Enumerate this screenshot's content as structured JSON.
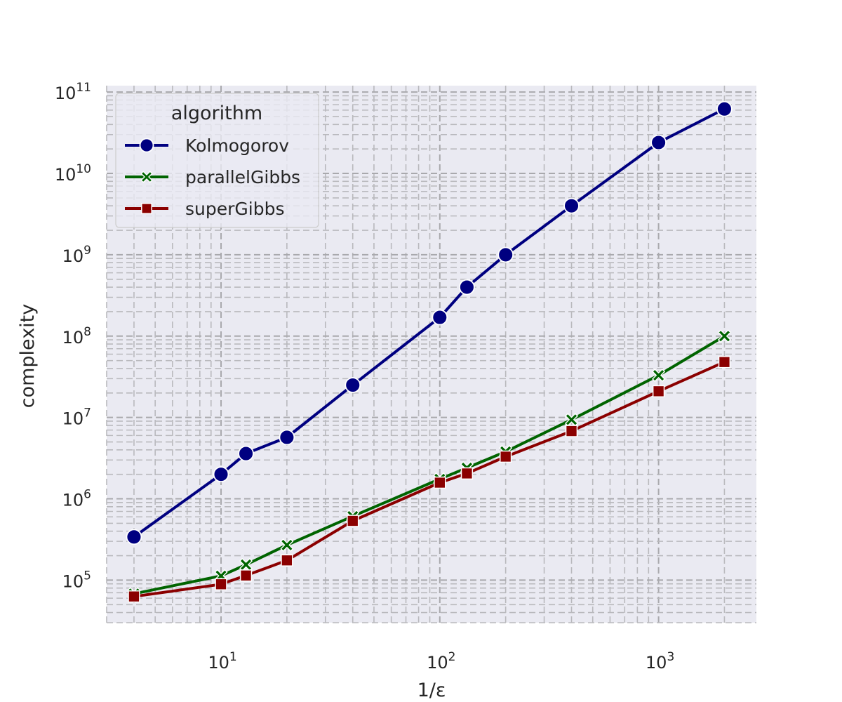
{
  "chart_data": {
    "type": "line",
    "x_scale": "log",
    "y_scale": "log",
    "xlabel": "1/ε",
    "ylabel": "complexity",
    "xlim": [
      3,
      2800
    ],
    "ylim": [
      30000,
      120000000000
    ],
    "x_ticks": [
      {
        "value": 10,
        "base": "10",
        "exp": "1"
      },
      {
        "value": 100,
        "base": "10",
        "exp": "2"
      },
      {
        "value": 1000,
        "base": "10",
        "exp": "3"
      }
    ],
    "y_ticks": [
      {
        "value": 100000,
        "base": "10",
        "exp": "5"
      },
      {
        "value": 1000000,
        "base": "10",
        "exp": "6"
      },
      {
        "value": 10000000,
        "base": "10",
        "exp": "7"
      },
      {
        "value": 100000000,
        "base": "10",
        "exp": "8"
      },
      {
        "value": 1000000000,
        "base": "10",
        "exp": "9"
      },
      {
        "value": 10000000000,
        "base": "10",
        "exp": "10"
      },
      {
        "value": 100000000000,
        "base": "10",
        "exp": "11"
      }
    ],
    "grid": "major and minor, dashed",
    "legend": {
      "title": "algorithm",
      "position": "top-left"
    },
    "x": [
      4,
      10,
      13,
      20,
      40,
      100,
      133,
      200,
      400,
      1000,
      2000
    ],
    "series": [
      {
        "name": "Kolmogorov",
        "color": "#000080",
        "marker": "circle",
        "values": [
          340000,
          2000000,
          3600000,
          5700000,
          25000000,
          170000000,
          400000000,
          1000000000,
          4000000000,
          24000000000,
          62000000000
        ]
      },
      {
        "name": "parallelGibbs",
        "color": "#006400",
        "marker": "x",
        "values": [
          68000,
          113000,
          155000,
          270000,
          610000,
          1750000,
          2400000,
          3800000,
          9400000,
          33000000,
          100000000
        ]
      },
      {
        "name": "superGibbs",
        "color": "#8b0000",
        "marker": "square",
        "values": [
          63000,
          89000,
          114000,
          175000,
          535000,
          1580000,
          2050000,
          3300000,
          6800000,
          21000000,
          48000000
        ]
      }
    ]
  }
}
